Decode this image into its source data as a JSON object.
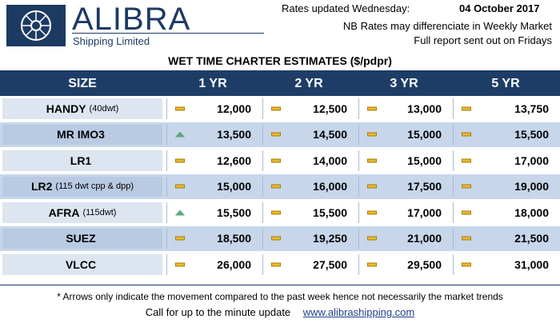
{
  "brand": {
    "name": "ALIBRA",
    "subtitle": "Shipping Limited"
  },
  "header": {
    "updated_label": "Rates updated Wednesday:",
    "date": "04 October 2017",
    "note1": "NB Rates may differenciate in Weekly Market",
    "note2": "Full report sent out on Fridays"
  },
  "title": "WET TIME CHARTER ESTIMATES ($/pdpr)",
  "columns": [
    "SIZE",
    "1 YR",
    "2 YR",
    "3 YR",
    "5 YR"
  ],
  "rows": [
    {
      "name": "HANDY",
      "detail": "(40dwt)",
      "cells": [
        {
          "trend": "flat",
          "value": "12,000"
        },
        {
          "trend": "flat",
          "value": "12,500"
        },
        {
          "trend": "flat",
          "value": "13,000"
        },
        {
          "trend": "flat",
          "value": "13,750"
        }
      ]
    },
    {
      "name": "MR IMO3",
      "detail": "",
      "cells": [
        {
          "trend": "up",
          "value": "13,500"
        },
        {
          "trend": "flat",
          "value": "14,500"
        },
        {
          "trend": "flat",
          "value": "15,000"
        },
        {
          "trend": "flat",
          "value": "15,500"
        }
      ]
    },
    {
      "name": "LR1",
      "detail": "",
      "cells": [
        {
          "trend": "flat",
          "value": "12,600"
        },
        {
          "trend": "flat",
          "value": "14,000"
        },
        {
          "trend": "flat",
          "value": "15,000"
        },
        {
          "trend": "flat",
          "value": "17,000"
        }
      ]
    },
    {
      "name": "LR2",
      "detail": "(115 dwt cpp & dpp)",
      "cells": [
        {
          "trend": "flat",
          "value": "15,000"
        },
        {
          "trend": "flat",
          "value": "16,000"
        },
        {
          "trend": "flat",
          "value": "17,500"
        },
        {
          "trend": "flat",
          "value": "19,000"
        }
      ]
    },
    {
      "name": "AFRA",
      "detail": "(115dwt)",
      "cells": [
        {
          "trend": "up",
          "value": "15,500"
        },
        {
          "trend": "flat",
          "value": "15,500"
        },
        {
          "trend": "flat",
          "value": "17,000"
        },
        {
          "trend": "flat",
          "value": "18,000"
        }
      ]
    },
    {
      "name": "SUEZ",
      "detail": "",
      "cells": [
        {
          "trend": "flat",
          "value": "18,500"
        },
        {
          "trend": "flat",
          "value": "19,250"
        },
        {
          "trend": "flat",
          "value": "21,000"
        },
        {
          "trend": "flat",
          "value": "21,500"
        }
      ]
    },
    {
      "name": "VLCC",
      "detail": "",
      "cells": [
        {
          "trend": "flat",
          "value": "26,000"
        },
        {
          "trend": "flat",
          "value": "27,500"
        },
        {
          "trend": "flat",
          "value": "29,500"
        },
        {
          "trend": "flat",
          "value": "31,000"
        }
      ]
    }
  ],
  "footer": {
    "note": "* Arrows only indicate the movement compared to the past week hence not necessarily the market trends",
    "call": "Call for up to the minute update",
    "link": "www.alibrashipping.com"
  },
  "colors": {
    "navy": "#1e3d66",
    "flat": "#e8b92f",
    "up": "#62a67f",
    "stripe": "#c7d6ea"
  }
}
